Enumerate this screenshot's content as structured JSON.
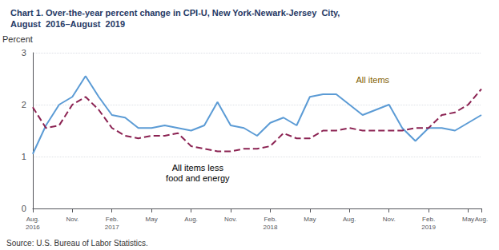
{
  "chart_data": {
    "type": "line",
    "title": "Chart 1. Over-the-year percent change in CPI-U, New York-Newark-Jersey  City,\nAugust  2016–August  2019",
    "y_label": "Percent",
    "source": "Source: U.S. Bureau of Labor Statistics.",
    "categories": [
      "Aug.\n2016",
      null,
      null,
      "Nov.",
      null,
      null,
      "Feb.\n2017",
      null,
      null,
      "May",
      null,
      null,
      "Aug.",
      null,
      null,
      "Nov.",
      null,
      null,
      "Feb.\n2018",
      null,
      null,
      "May",
      null,
      null,
      "Aug.",
      null,
      null,
      "Nov.",
      null,
      null,
      "Feb.\n2019",
      null,
      null,
      "May",
      "Aug."
    ],
    "series": [
      {
        "color": "#5b9bd5",
        "line_style": "solid",
        "values": [
          1.05,
          1.6,
          2.0,
          2.15,
          2.55,
          2.15,
          1.8,
          1.75,
          1.55,
          1.55,
          1.6,
          1.55,
          1.5,
          1.6,
          2.05,
          1.6,
          1.55,
          1.4,
          1.65,
          1.75,
          1.6,
          2.15,
          2.2,
          2.2,
          2.0,
          1.8,
          1.9,
          2.0,
          1.55,
          1.3,
          1.55,
          1.55,
          1.5,
          1.65,
          1.8
        ]
      },
      {
        "color": "#8B2252",
        "line_style": "dashed",
        "values": [
          1.95,
          1.55,
          1.6,
          2.0,
          2.15,
          1.9,
          1.55,
          1.4,
          1.35,
          1.4,
          1.4,
          1.45,
          1.2,
          1.15,
          1.1,
          1.1,
          1.15,
          1.15,
          1.2,
          1.45,
          1.35,
          1.35,
          1.5,
          1.5,
          1.55,
          1.5,
          1.5,
          1.5,
          1.5,
          1.55,
          1.55,
          1.8,
          1.85,
          2.0,
          2.3
        ]
      }
    ],
    "ylim": [
      0,
      3
    ],
    "yticks": [
      0,
      1,
      2,
      3
    ],
    "grid": true,
    "title_color": "#1F3864",
    "annotations": [
      {
        "text": "All items",
        "color": "#7F6000"
      },
      {
        "text": "All items less\nfood and energy",
        "color": "#000000"
      }
    ]
  }
}
